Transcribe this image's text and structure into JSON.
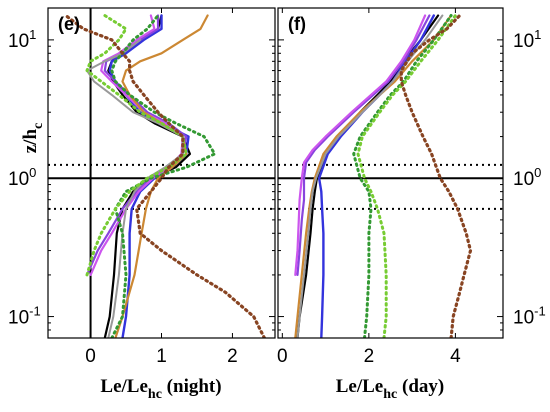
{
  "chart_data": [
    {
      "type": "line",
      "panel_label": "(e)",
      "xlabel_main": "Le/Le",
      "xlabel_sub": "hc",
      "xlabel_suffix": " (night)",
      "ylabel_main": "z/h",
      "ylabel_sub": "c",
      "x_scale": "linear",
      "y_scale": "log",
      "xlim": [
        -0.6,
        2.6
      ],
      "ylim": [
        0.07,
        17
      ],
      "x_ticks": [
        "0",
        "1",
        "2"
      ],
      "x_tick_values": [
        0,
        1,
        2
      ],
      "y_ticks": [
        "10^-1",
        "10^0",
        "10^1"
      ],
      "y_tick_values": [
        0.1,
        1,
        10
      ],
      "y_tick_side": "left",
      "reference_lines": {
        "vertical_solid": [
          0
        ],
        "horizontal_solid": [
          1
        ],
        "horizontal_dotted": [
          1.25,
          0.6
        ]
      },
      "series": [
        {
          "color": "#000000",
          "style": "solid",
          "width": 2.2,
          "y": [
            0.07,
            0.1,
            0.2,
            0.4,
            0.6,
            0.8,
            1,
            1.2,
            1.5,
            2,
            2.5,
            3,
            4,
            5,
            6,
            7,
            8,
            10,
            12,
            15
          ],
          "x": [
            0.2,
            0.27,
            0.33,
            0.37,
            0.45,
            0.6,
            0.85,
            1.2,
            1.4,
            1.3,
            0.9,
            0.65,
            0.45,
            0.32,
            0.25,
            0.3,
            0.45,
            0.7,
            0.95,
            1.0
          ]
        },
        {
          "color": "#3333dd",
          "style": "solid",
          "width": 2.4,
          "y": [
            0.07,
            0.1,
            0.2,
            0.4,
            0.6,
            0.8,
            1,
            1.2,
            1.5,
            2,
            2.5,
            3,
            4,
            5,
            6,
            7,
            8,
            10,
            12,
            15
          ],
          "x": [
            0.45,
            0.5,
            0.55,
            0.55,
            0.58,
            0.7,
            0.9,
            1.15,
            1.35,
            1.38,
            1.0,
            0.7,
            0.5,
            0.35,
            0.27,
            0.3,
            0.5,
            0.75,
            1.0,
            1.0
          ]
        },
        {
          "color": "#8844dd",
          "style": "solid",
          "width": 2.2,
          "y": [
            0.2,
            0.3,
            0.4,
            0.6,
            0.8,
            1,
            1.2,
            1.5,
            2,
            2.5,
            3,
            4,
            5,
            6,
            7,
            8,
            10,
            12,
            15
          ],
          "x": [
            -0.05,
            0.1,
            0.25,
            0.45,
            0.65,
            0.85,
            1.1,
            1.3,
            1.35,
            1.1,
            0.8,
            0.55,
            0.35,
            0.2,
            0.22,
            0.45,
            0.7,
            0.95,
            0.95
          ]
        },
        {
          "color": "#cc55ee",
          "style": "solid",
          "width": 2.2,
          "y": [
            0.2,
            0.3,
            0.4,
            0.6,
            0.8,
            1,
            1.2,
            1.5,
            2,
            2.5,
            3,
            4,
            5,
            6,
            7,
            8,
            10,
            12,
            15
          ],
          "x": [
            0.0,
            0.15,
            0.3,
            0.5,
            0.68,
            0.88,
            1.1,
            1.28,
            1.3,
            1.05,
            0.75,
            0.5,
            0.3,
            0.15,
            0.18,
            0.4,
            0.65,
            0.9,
            0.85
          ]
        },
        {
          "color": "#cc8833",
          "style": "solid",
          "width": 2.2,
          "y": [
            0.07,
            0.1,
            0.2,
            0.4,
            0.6,
            0.8,
            1,
            1.2,
            1.5,
            2,
            2.5,
            3,
            4,
            5,
            6,
            7,
            8,
            10,
            12,
            15
          ],
          "x": [
            0.35,
            0.45,
            0.62,
            0.72,
            0.78,
            0.85,
            0.95,
            1.15,
            1.35,
            1.3,
            1.0,
            0.75,
            0.55,
            0.45,
            0.5,
            0.7,
            1.0,
            1.3,
            1.55,
            1.65
          ]
        },
        {
          "color": "#999999",
          "style": "solid",
          "width": 2.0,
          "y": [
            0.07,
            0.1,
            0.2,
            0.4,
            0.6,
            0.8,
            1,
            1.2,
            1.5,
            2,
            2.5,
            3,
            4,
            5,
            6,
            7,
            8,
            10
          ],
          "x": [
            0.25,
            0.32,
            0.4,
            0.45,
            0.5,
            0.62,
            0.8,
            1.05,
            1.3,
            1.3,
            0.95,
            0.6,
            0.3,
            0.05,
            -0.05,
            0.2,
            0.45,
            0.7
          ]
        },
        {
          "color": "#339933",
          "style": "dotted",
          "width": 2.4,
          "y": [
            0.07,
            0.1,
            0.2,
            0.4,
            0.6,
            0.8,
            1,
            1.2,
            1.5,
            2,
            2.5,
            3,
            4,
            5,
            6,
            7,
            8,
            10,
            12,
            15
          ],
          "x": [
            0.3,
            0.45,
            0.5,
            0.45,
            0.35,
            0.5,
            0.85,
            1.35,
            1.75,
            1.6,
            1.2,
            0.9,
            0.55,
            0.35,
            0.3,
            0.35,
            0.45,
            0.6,
            0.8,
            0.95
          ]
        },
        {
          "color": "#77cc33",
          "style": "dotted",
          "width": 2.4,
          "y": [
            0.2,
            0.3,
            0.4,
            0.6,
            0.8,
            1,
            1.2,
            1.5,
            2,
            2.5,
            3,
            4,
            5,
            6,
            7,
            8,
            10,
            12,
            15
          ],
          "x": [
            -0.05,
            0.05,
            0.15,
            0.35,
            0.55,
            0.8,
            1.1,
            1.35,
            1.3,
            1.0,
            0.7,
            0.4,
            0.15,
            -0.05,
            0.0,
            0.2,
            0.4,
            0.5,
            0.2
          ]
        },
        {
          "color": "#884422",
          "style": "dotted",
          "width": 2.6,
          "y": [
            0.07,
            0.1,
            0.15,
            0.2,
            0.3,
            0.4,
            0.6,
            0.8,
            1,
            1.2,
            1.5,
            2,
            2.5,
            3,
            4,
            5,
            6,
            7,
            8,
            10,
            12,
            15
          ],
          "x": [
            2.45,
            2.3,
            1.9,
            1.5,
            1.0,
            0.7,
            0.65,
            0.85,
            1.0,
            1.1,
            1.3,
            1.3,
            1.1,
            0.95,
            0.75,
            0.6,
            0.55,
            0.55,
            0.45,
            0.3,
            -0.1,
            -0.35
          ]
        }
      ]
    },
    {
      "type": "line",
      "panel_label": "(f)",
      "xlabel_main": "Le/Le",
      "xlabel_sub": "hc",
      "xlabel_suffix": " (day)",
      "x_scale": "linear",
      "y_scale": "log",
      "xlim": [
        -0.1,
        5.1
      ],
      "ylim": [
        0.07,
        17
      ],
      "x_ticks": [
        "0",
        "2",
        "4"
      ],
      "x_tick_values": [
        0,
        2,
        4
      ],
      "y_ticks": [
        "10^-1",
        "10^0",
        "10^1"
      ],
      "y_tick_values": [
        0.1,
        1,
        10
      ],
      "y_tick_side": "right",
      "reference_lines": {
        "horizontal_solid": [
          1
        ],
        "horizontal_dotted": [
          1.25,
          0.6
        ]
      },
      "series": [
        {
          "color": "#000000",
          "style": "solid",
          "width": 2.2,
          "y": [
            0.07,
            0.1,
            0.2,
            0.4,
            0.6,
            0.8,
            1,
            1.5,
            2,
            3,
            4,
            5,
            7,
            10,
            15
          ],
          "x": [
            0.35,
            0.4,
            0.55,
            0.65,
            0.7,
            0.75,
            0.8,
            1.0,
            1.3,
            1.8,
            2.2,
            2.5,
            2.8,
            3.2,
            3.6
          ]
        },
        {
          "color": "#3333dd",
          "style": "solid",
          "width": 2.4,
          "y": [
            0.07,
            0.1,
            0.2,
            0.4,
            0.6,
            0.8,
            1,
            1.5,
            2,
            3,
            4,
            5,
            7,
            10,
            15
          ],
          "x": [
            0.9,
            0.92,
            0.95,
            0.95,
            0.92,
            0.9,
            0.85,
            1.05,
            1.35,
            1.85,
            2.25,
            2.55,
            2.85,
            3.2,
            3.5
          ]
        },
        {
          "color": "#8844dd",
          "style": "solid",
          "width": 2.2,
          "y": [
            0.2,
            0.3,
            0.5,
            0.7,
            1,
            1.3,
            1.6,
            2,
            3,
            4,
            5,
            7,
            10,
            15
          ],
          "x": [
            0.35,
            0.4,
            0.45,
            0.5,
            0.5,
            0.55,
            0.75,
            1.05,
            1.65,
            2.1,
            2.45,
            2.8,
            3.1,
            3.4
          ]
        },
        {
          "color": "#cc55ee",
          "style": "solid",
          "width": 2.2,
          "y": [
            0.2,
            0.3,
            0.5,
            0.7,
            1,
            1.3,
            1.6,
            2,
            3,
            4,
            5,
            7,
            10,
            15
          ],
          "x": [
            0.3,
            0.35,
            0.38,
            0.4,
            0.45,
            0.5,
            0.7,
            1.0,
            1.6,
            2.05,
            2.4,
            2.75,
            3.05,
            3.3
          ]
        },
        {
          "color": "#cc8833",
          "style": "solid",
          "width": 2.2,
          "y": [
            0.07,
            0.1,
            0.2,
            0.4,
            0.6,
            0.8,
            1,
            1.5,
            2,
            3,
            4,
            5,
            7,
            10,
            15
          ],
          "x": [
            0.3,
            0.35,
            0.45,
            0.55,
            0.62,
            0.68,
            0.75,
            0.95,
            1.25,
            1.8,
            2.25,
            2.6,
            3.0,
            3.5,
            3.9
          ]
        },
        {
          "color": "#999999",
          "style": "solid",
          "width": 2.0,
          "y": [
            0.07,
            0.1,
            0.2,
            0.4,
            0.6,
            0.8,
            1,
            1.5,
            2,
            3,
            4,
            5,
            7,
            10,
            15
          ],
          "x": [
            0.35,
            0.4,
            0.5,
            0.6,
            0.65,
            0.7,
            0.78,
            1.0,
            1.3,
            1.85,
            2.25,
            2.55,
            2.9,
            3.3,
            3.7
          ]
        },
        {
          "color": "#339933",
          "style": "dotted",
          "width": 2.4,
          "y": [
            0.07,
            0.1,
            0.2,
            0.4,
            0.6,
            0.8,
            1,
            1.5,
            2,
            3,
            4,
            5,
            7,
            10,
            15
          ],
          "x": [
            1.9,
            1.95,
            2.0,
            2.0,
            2.05,
            2.0,
            1.8,
            1.65,
            1.8,
            2.2,
            2.5,
            2.8,
            3.1,
            3.5,
            3.9
          ]
        },
        {
          "color": "#77cc33",
          "style": "dotted",
          "width": 2.4,
          "y": [
            0.07,
            0.1,
            0.2,
            0.4,
            0.6,
            0.8,
            1,
            1.5,
            2,
            3,
            4,
            5,
            7,
            10,
            15
          ],
          "x": [
            2.35,
            2.4,
            2.4,
            2.35,
            2.2,
            2.05,
            1.9,
            1.75,
            1.85,
            2.25,
            2.55,
            2.85,
            3.2,
            3.6,
            4.0
          ]
        },
        {
          "color": "#884422",
          "style": "dotted",
          "width": 2.6,
          "y": [
            0.07,
            0.1,
            0.15,
            0.2,
            0.3,
            0.4,
            0.6,
            0.8,
            1,
            1.5,
            2,
            3,
            4,
            5,
            6,
            8,
            10,
            12,
            15
          ],
          "x": [
            3.9,
            3.95,
            4.1,
            4.2,
            4.35,
            4.25,
            4.05,
            3.85,
            3.65,
            3.45,
            3.25,
            3.0,
            2.85,
            2.75,
            2.75,
            3.0,
            3.4,
            3.8,
            4.1
          ]
        }
      ]
    }
  ]
}
